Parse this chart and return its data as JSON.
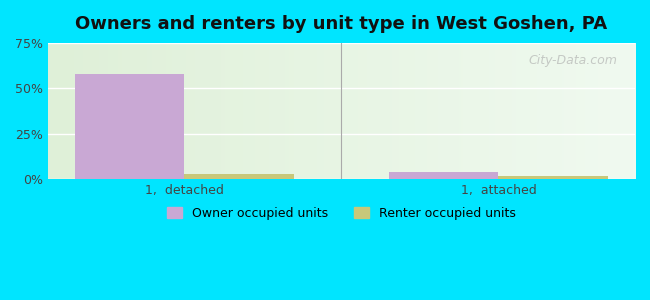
{
  "title": "Owners and renters by unit type in West Goshen, PA",
  "categories": [
    "1,  detached",
    "1,  attached"
  ],
  "owner_values": [
    58,
    4
  ],
  "renter_values": [
    3,
    2
  ],
  "owner_color": "#c9a8d4",
  "renter_color": "#c8c87a",
  "ylim": [
    0,
    75
  ],
  "yticks": [
    0,
    25,
    50,
    75
  ],
  "yticklabels": [
    "0%",
    "25%",
    "50%",
    "75%"
  ],
  "bar_width": 0.35,
  "legend_owner": "Owner occupied units",
  "legend_renter": "Renter occupied units",
  "watermark": "City-Data.com",
  "bg_color_left": "#e8f5e2",
  "bg_color_right": "#f5fff5",
  "outer_bg": "#00e5ff"
}
